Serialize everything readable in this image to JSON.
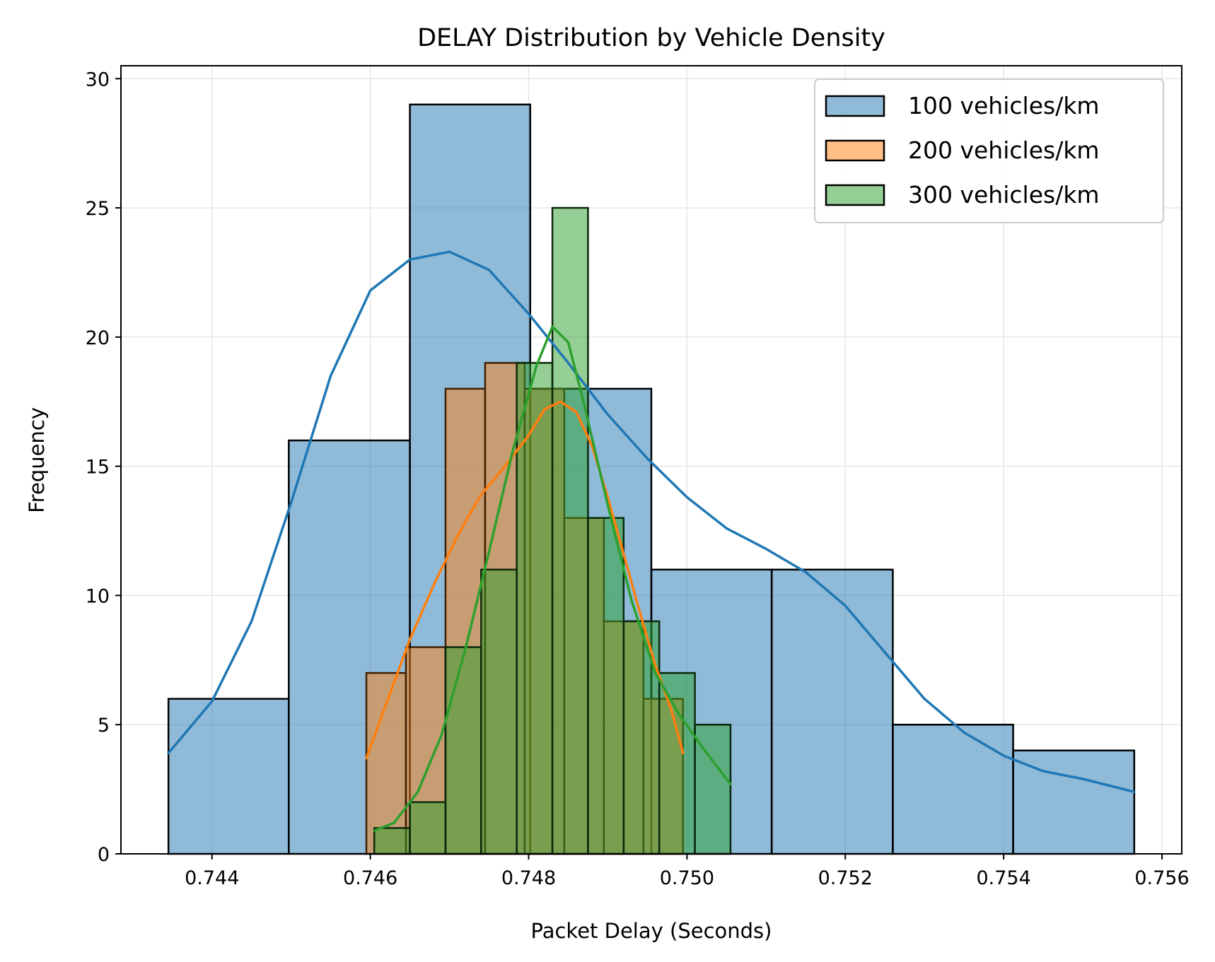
{
  "chart_data": {
    "type": "histogram",
    "title": "DELAY Distribution by Vehicle Density",
    "xlabel": "Packet Delay (Seconds)",
    "ylabel": "Frequency",
    "xlim": [
      0.74285,
      0.75625
    ],
    "ylim": [
      0,
      30.5
    ],
    "x_ticks": [
      0.744,
      0.746,
      0.748,
      0.75,
      0.752,
      0.754,
      0.756
    ],
    "x_tick_labels": [
      "0.744",
      "0.746",
      "0.748",
      "0.750",
      "0.752",
      "0.754",
      "0.756"
    ],
    "y_ticks": [
      0,
      5,
      10,
      15,
      20,
      25,
      30
    ],
    "y_tick_labels": [
      "0",
      "5",
      "10",
      "15",
      "20",
      "25",
      "30"
    ],
    "grid": true,
    "legend_position": "top-right",
    "kde": true,
    "series": [
      {
        "name": "100 vehicles/km",
        "color": "#1f77b4",
        "bin_edges": [
          0.74345,
          0.74497,
          0.7465,
          0.74802,
          0.74955,
          0.75107,
          0.7526,
          0.75412,
          0.75565
        ],
        "counts": [
          6,
          16,
          29,
          18,
          11,
          11,
          5,
          4
        ],
        "kde": [
          [
            0.74345,
            3.9
          ],
          [
            0.744,
            5.9
          ],
          [
            0.7445,
            9.0
          ],
          [
            0.745,
            13.6
          ],
          [
            0.7455,
            18.5
          ],
          [
            0.746,
            21.8
          ],
          [
            0.7465,
            23.0
          ],
          [
            0.747,
            23.3
          ],
          [
            0.7475,
            22.6
          ],
          [
            0.748,
            20.9
          ],
          [
            0.7485,
            19.0
          ],
          [
            0.749,
            17.0
          ],
          [
            0.7495,
            15.3
          ],
          [
            0.75,
            13.8
          ],
          [
            0.7505,
            12.6
          ],
          [
            0.751,
            11.8
          ],
          [
            0.7515,
            10.9
          ],
          [
            0.752,
            9.6
          ],
          [
            0.7525,
            7.8
          ],
          [
            0.753,
            6.0
          ],
          [
            0.7535,
            4.7
          ],
          [
            0.754,
            3.8
          ],
          [
            0.7545,
            3.2
          ],
          [
            0.755,
            2.9
          ],
          [
            0.75565,
            2.4
          ]
        ]
      },
      {
        "name": "200 vehicles/km",
        "color": "#ff7f0e",
        "bin_edges": [
          0.74595,
          0.74645,
          0.74695,
          0.74745,
          0.74795,
          0.74845,
          0.74895,
          0.74945,
          0.74995
        ],
        "counts": [
          7,
          8,
          18,
          19,
          18,
          13,
          9,
          6
        ],
        "kde": [
          [
            0.74595,
            3.7
          ],
          [
            0.7462,
            5.8
          ],
          [
            0.7465,
            8.3
          ],
          [
            0.7468,
            10.4
          ],
          [
            0.7471,
            12.3
          ],
          [
            0.7474,
            13.9
          ],
          [
            0.7477,
            15.0
          ],
          [
            0.748,
            16.2
          ],
          [
            0.7482,
            17.2
          ],
          [
            0.7484,
            17.5
          ],
          [
            0.7486,
            17.1
          ],
          [
            0.7488,
            15.8
          ],
          [
            0.749,
            13.8
          ],
          [
            0.7492,
            11.6
          ],
          [
            0.7494,
            9.4
          ],
          [
            0.7496,
            7.3
          ],
          [
            0.7498,
            5.6
          ],
          [
            0.74995,
            3.9
          ]
        ]
      },
      {
        "name": "300 vehicles/km",
        "color": "#2ca02c",
        "bin_edges": [
          0.74605,
          0.7465,
          0.74695,
          0.7474,
          0.74785,
          0.7483,
          0.74875,
          0.7492,
          0.74965,
          0.7501,
          0.75055
        ],
        "counts": [
          1,
          2,
          8,
          11,
          19,
          25,
          13,
          9,
          7,
          5
        ],
        "kde": [
          [
            0.74605,
            0.9
          ],
          [
            0.7463,
            1.2
          ],
          [
            0.7466,
            2.4
          ],
          [
            0.7469,
            4.6
          ],
          [
            0.7472,
            7.9
          ],
          [
            0.7475,
            11.7
          ],
          [
            0.7478,
            15.6
          ],
          [
            0.7481,
            18.9
          ],
          [
            0.7483,
            20.4
          ],
          [
            0.7485,
            19.8
          ],
          [
            0.7487,
            17.4
          ],
          [
            0.749,
            13.5
          ],
          [
            0.7493,
            9.8
          ],
          [
            0.7496,
            7.0
          ],
          [
            0.7499,
            5.4
          ],
          [
            0.7502,
            4.1
          ],
          [
            0.75055,
            2.7
          ]
        ]
      }
    ]
  }
}
